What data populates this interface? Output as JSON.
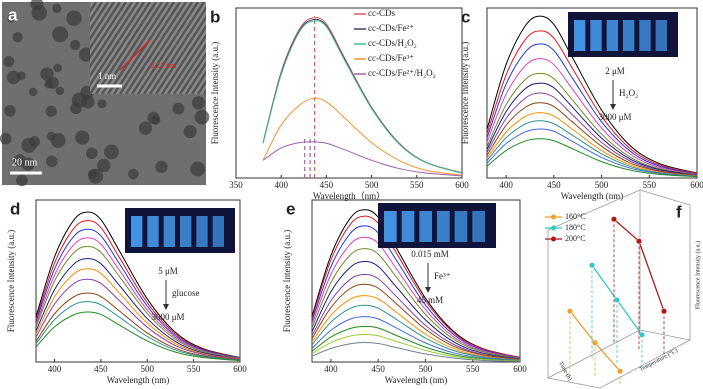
{
  "image_panel": {
    "label": "a",
    "scale_bar": "20 nm",
    "inset_scale_bar": "1 nm",
    "lattice_spacing": "0.21 nm"
  },
  "chart_data": [
    {
      "type": "line",
      "label": "b",
      "x_label": "Wavelength（nm）",
      "y_label": "Fluorescence Intensity (a.u.)",
      "x": [
        380,
        400,
        420,
        435,
        450,
        470,
        500,
        530,
        560,
        600
      ],
      "xlim": [
        350,
        600
      ],
      "xticks": [
        350,
        400,
        450,
        500,
        550,
        600
      ],
      "ylim": [
        0,
        480
      ],
      "series": [
        {
          "name": "cc-CDs",
          "color": "#e05a5a",
          "values": [
            100,
            300,
            420,
            452,
            435,
            340,
            200,
            100,
            45,
            15
          ]
        },
        {
          "name": "cc-CDs/Fe²⁺",
          "color": "#3a3f6e",
          "values": [
            100,
            295,
            415,
            447,
            430,
            336,
            198,
            98,
            44,
            14
          ]
        },
        {
          "name": "cc-CDs/H₂O₂",
          "color": "#3fbf8f",
          "values": [
            98,
            292,
            412,
            443,
            427,
            333,
            196,
            97,
            44,
            14
          ]
        },
        {
          "name": "cc-CDs/Fe³⁺",
          "color": "#f0962e",
          "values": [
            50,
            150,
            205,
            225,
            215,
            170,
            100,
            50,
            22,
            8
          ]
        },
        {
          "name": "cc-CDs/Fe²⁺/H₂O₂",
          "color": "#a05fb0",
          "values": [
            50,
            85,
            100,
            102,
            98,
            80,
            50,
            27,
            14,
            6
          ]
        }
      ],
      "reference_lines": [
        {
          "x": 437,
          "color": "#e05a5a"
        },
        {
          "x": 426,
          "color": "#a05fb0"
        },
        {
          "x": 432,
          "color": "#a05fb0"
        }
      ]
    },
    {
      "type": "line",
      "label": "c",
      "x_label": "Wavelength (nm)",
      "y_label": "Fluorescence Intensity (a.u.)",
      "x": [
        380,
        400,
        420,
        435,
        450,
        470,
        500,
        530,
        560,
        600
      ],
      "xlim": [
        380,
        600
      ],
      "xticks": [
        400,
        450,
        500,
        550,
        600
      ],
      "ylim": [
        0,
        520
      ],
      "annotations": [
        "2 μM",
        "H₂O₂",
        "3000 μM"
      ],
      "series": [
        {
          "color": "#000000",
          "values": [
            149,
            347,
            465,
            495,
            470,
            366,
            208,
            99,
            45,
            15
          ]
        },
        {
          "color": "#e8141c",
          "values": [
            135,
            315,
            423,
            450,
            428,
            333,
            189,
            90,
            41,
            14
          ]
        },
        {
          "color": "#1f3bd6",
          "values": [
            123,
            287,
            385,
            410,
            390,
            303,
            172,
            82,
            37,
            12
          ]
        },
        {
          "color": "#e040c0",
          "values": [
            110,
            256,
            343,
            365,
            347,
            270,
            153,
            73,
            33,
            11
          ]
        },
        {
          "color": "#6b8e23",
          "values": [
            96,
            224,
            301,
            320,
            304,
            237,
            134,
            64,
            29,
            10
          ]
        },
        {
          "color": "#1b1b7a",
          "values": [
            87,
            203,
            273,
            290,
            276,
            215,
            122,
            58,
            26,
            9
          ]
        },
        {
          "color": "#8b3fa8",
          "values": [
            78,
            182,
            244,
            260,
            247,
            192,
            109,
            52,
            23,
            8
          ]
        },
        {
          "color": "#8b4513",
          "values": [
            69,
            161,
            216,
            230,
            219,
            170,
            97,
            46,
            21,
            7
          ]
        },
        {
          "color": "#ff8c00",
          "values": [
            60,
            140,
            188,
            200,
            190,
            148,
            84,
            40,
            18,
            6
          ]
        },
        {
          "color": "#2f8f8f",
          "values": [
            53,
            123,
            165,
            175,
            166,
            130,
            74,
            35,
            16,
            5
          ]
        },
        {
          "color": "#4169e1",
          "values": [
            45,
            105,
            141,
            150,
            143,
            111,
            63,
            30,
            14,
            5
          ]
        },
        {
          "color": "#228b22",
          "values": [
            36,
            84,
            113,
            120,
            114,
            89,
            50,
            24,
            11,
            4
          ]
        }
      ]
    },
    {
      "type": "line",
      "label": "d",
      "x_label": "Wavelength (nm)",
      "y_label": "Fluorescence Intensity (a.u.)",
      "x": [
        380,
        400,
        420,
        435,
        450,
        470,
        500,
        530,
        560,
        600
      ],
      "xlim": [
        380,
        600
      ],
      "xticks": [
        400,
        450,
        500,
        550,
        600
      ],
      "ylim": [
        0,
        470
      ],
      "annotations": [
        "5 μM",
        "glucose",
        "3000 μM"
      ],
      "series": [
        {
          "color": "#000000",
          "values": [
            131,
            305,
            409,
            435,
            413,
            322,
            183,
            87,
            39,
            13
          ]
        },
        {
          "color": "#e8141c",
          "values": [
            123,
            287,
            385,
            410,
            390,
            303,
            172,
            82,
            37,
            12
          ]
        },
        {
          "color": "#1f3bd6",
          "values": [
            116,
            270,
            362,
            385,
            366,
            285,
            162,
            77,
            35,
            12
          ]
        },
        {
          "color": "#e040c0",
          "values": [
            108,
            252,
            338,
            360,
            342,
            266,
            151,
            72,
            32,
            11
          ]
        },
        {
          "color": "#6b8e23",
          "values": [
            101,
            235,
            315,
            335,
            318,
            248,
            141,
            67,
            30,
            10
          ]
        },
        {
          "color": "#1b1b7a",
          "values": [
            90,
            210,
            282,
            300,
            285,
            222,
            126,
            60,
            27,
            9
          ]
        },
        {
          "color": "#ff8c00",
          "values": [
            81,
            189,
            254,
            270,
            257,
            200,
            113,
            54,
            24,
            8
          ]
        },
        {
          "color": "#8b3fa8",
          "values": [
            72,
            168,
            226,
            240,
            228,
            178,
            101,
            48,
            22,
            7
          ]
        },
        {
          "color": "#8b4513",
          "values": [
            60,
            140,
            188,
            200,
            190,
            148,
            84,
            40,
            18,
            6
          ]
        },
        {
          "color": "#2f8f8f",
          "values": [
            53,
            123,
            165,
            175,
            166,
            130,
            74,
            35,
            16,
            5
          ]
        },
        {
          "color": "#228b22",
          "values": [
            44,
            102,
            136,
            145,
            138,
            107,
            61,
            29,
            13,
            4
          ]
        }
      ]
    },
    {
      "type": "line",
      "label": "e",
      "x_label": "Wavelength (nm)",
      "y_label": "Fluorescence Intensity (a.u.)",
      "x": [
        380,
        400,
        420,
        435,
        450,
        470,
        500,
        530,
        560,
        600
      ],
      "xlim": [
        380,
        600
      ],
      "xticks": [
        400,
        450,
        500,
        550,
        600
      ],
      "ylim": [
        0,
        500
      ],
      "annotations": [
        "0.015 mM",
        "Fe³⁺",
        "45 mM"
      ],
      "series": [
        {
          "color": "#000000",
          "values": [
            141,
            329,
            442,
            470,
            447,
            348,
            197,
            94,
            42,
            14
          ]
        },
        {
          "color": "#e8141c",
          "values": [
            135,
            315,
            423,
            450,
            428,
            333,
            189,
            90,
            41,
            14
          ]
        },
        {
          "color": "#1f3bd6",
          "values": [
            126,
            294,
            395,
            420,
            399,
            311,
            176,
            84,
            38,
            13
          ]
        },
        {
          "color": "#e040c0",
          "values": [
            116,
            270,
            362,
            385,
            366,
            285,
            162,
            77,
            35,
            12
          ]
        },
        {
          "color": "#6b8e23",
          "values": [
            105,
            245,
            329,
            350,
            333,
            259,
            147,
            70,
            32,
            11
          ]
        },
        {
          "color": "#1b1b7a",
          "values": [
            93,
            217,
            291,
            310,
            295,
            229,
            130,
            62,
            28,
            9
          ]
        },
        {
          "color": "#8b3fa8",
          "values": [
            81,
            189,
            254,
            270,
            257,
            200,
            113,
            54,
            24,
            8
          ]
        },
        {
          "color": "#8b4513",
          "values": [
            72,
            168,
            226,
            240,
            228,
            178,
            101,
            48,
            22,
            7
          ]
        },
        {
          "color": "#ff8c00",
          "values": [
            62,
            144,
            193,
            205,
            195,
            152,
            86,
            41,
            18,
            6
          ]
        },
        {
          "color": "#2f8f8f",
          "values": [
            53,
            123,
            165,
            175,
            166,
            130,
            74,
            35,
            16,
            5
          ]
        },
        {
          "color": "#4169e1",
          "values": [
            42,
            98,
            132,
            140,
            133,
            104,
            59,
            28,
            13,
            4
          ]
        },
        {
          "color": "#228b22",
          "values": [
            33,
            77,
            103,
            110,
            105,
            81,
            46,
            22,
            10,
            3
          ]
        },
        {
          "color": "#9acd32",
          "values": [
            26,
            60,
            80,
            85,
            81,
            63,
            36,
            17,
            8,
            3
          ]
        },
        {
          "color": "#708090",
          "values": [
            18,
            42,
            56,
            60,
            57,
            44,
            25,
            12,
            5,
            2
          ]
        }
      ]
    },
    {
      "type": "line3d",
      "label": "f",
      "x_label": "Time (h)",
      "y_label": "Temperature (°C)",
      "z_label": "Fluorescence Intensity (a.u.)",
      "categories": [
        null,
        null,
        null
      ],
      "ylim": [
        0,
        100
      ],
      "series": [
        {
          "name": "160°C",
          "color": "#f0a030",
          "values": [
            38,
            22,
            8
          ]
        },
        {
          "name": "180°C",
          "color": "#30c8c8",
          "values": [
            58,
            40,
            22
          ]
        },
        {
          "name": "200°C",
          "color": "#b01818",
          "values": [
            78,
            68,
            28
          ]
        }
      ]
    }
  ]
}
